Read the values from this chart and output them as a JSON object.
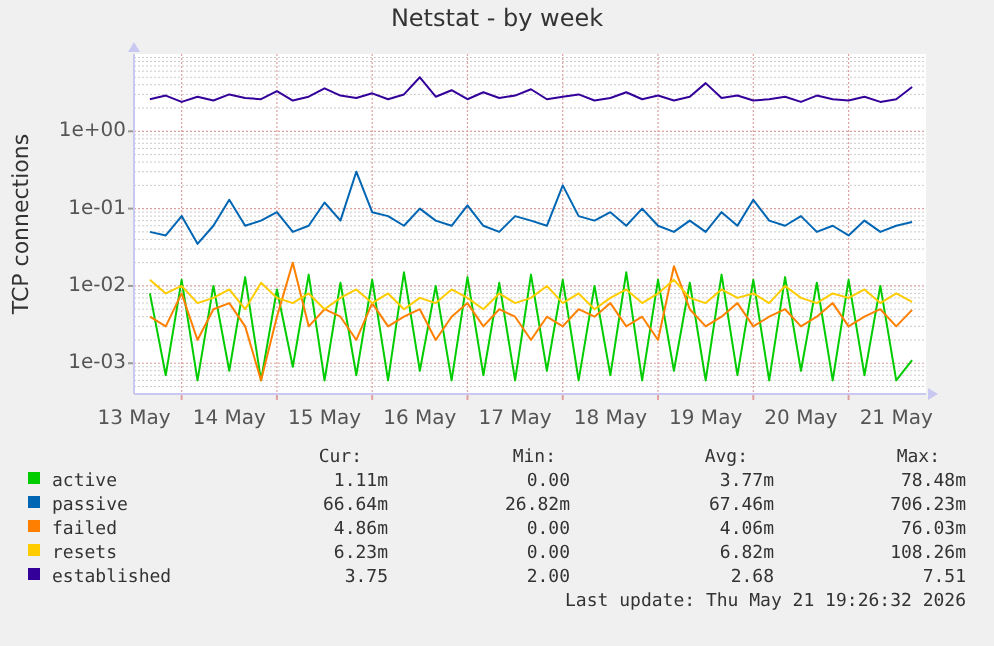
{
  "chart_data": {
    "type": "line",
    "title": "Netstat - by week",
    "ylabel": "TCP connections",
    "log": "y",
    "grid": true,
    "legend": "bottom",
    "line_style": "solid",
    "xlim": [
      "2026-05-13T12:00",
      "2026-05-21T19:30"
    ],
    "xticks": [
      {
        "value": "2026-05-13T12:00",
        "label": "13 May"
      },
      {
        "value": "2026-05-14T00:00",
        "label": null
      },
      {
        "value": "2026-05-14T12:00",
        "label": "14 May"
      },
      {
        "value": "2026-05-15T00:00",
        "label": null
      },
      {
        "value": "2026-05-15T12:00",
        "label": "15 May"
      },
      {
        "value": "2026-05-16T00:00",
        "label": null
      },
      {
        "value": "2026-05-16T12:00",
        "label": "16 May"
      },
      {
        "value": "2026-05-17T00:00",
        "label": null
      },
      {
        "value": "2026-05-17T12:00",
        "label": "17 May"
      },
      {
        "value": "2026-05-18T00:00",
        "label": null
      },
      {
        "value": "2026-05-18T12:00",
        "label": "18 May"
      },
      {
        "value": "2026-05-19T00:00",
        "label": null
      },
      {
        "value": "2026-05-19T12:00",
        "label": "19 May"
      },
      {
        "value": "2026-05-20T00:00",
        "label": null
      },
      {
        "value": "2026-05-20T12:00",
        "label": "20 May"
      },
      {
        "value": "2026-05-21T00:00",
        "label": null
      },
      {
        "value": "2026-05-21T12:00",
        "label": "21 May"
      }
    ],
    "ylim": [
      0.0004,
      10
    ],
    "yticks": [
      {
        "value": 0.001,
        "label": "1e-03"
      },
      {
        "value": 0.01,
        "label": "1e-02"
      },
      {
        "value": 0.1,
        "label": "1e-01"
      },
      {
        "value": 1,
        "label": "1e+00"
      }
    ],
    "x": [
      "2026-05-13T16:00",
      "2026-05-13T20:00",
      "2026-05-14T00:00",
      "2026-05-14T04:00",
      "2026-05-14T08:00",
      "2026-05-14T12:00",
      "2026-05-14T16:00",
      "2026-05-14T20:00",
      "2026-05-15T00:00",
      "2026-05-15T04:00",
      "2026-05-15T08:00",
      "2026-05-15T12:00",
      "2026-05-15T16:00",
      "2026-05-15T20:00",
      "2026-05-16T00:00",
      "2026-05-16T04:00",
      "2026-05-16T08:00",
      "2026-05-16T12:00",
      "2026-05-16T16:00",
      "2026-05-16T20:00",
      "2026-05-17T00:00",
      "2026-05-17T04:00",
      "2026-05-17T08:00",
      "2026-05-17T12:00",
      "2026-05-17T16:00",
      "2026-05-17T20:00",
      "2026-05-18T00:00",
      "2026-05-18T04:00",
      "2026-05-18T08:00",
      "2026-05-18T12:00",
      "2026-05-18T16:00",
      "2026-05-18T20:00",
      "2026-05-19T00:00",
      "2026-05-19T04:00",
      "2026-05-19T08:00",
      "2026-05-19T12:00",
      "2026-05-19T16:00",
      "2026-05-19T20:00",
      "2026-05-20T00:00",
      "2026-05-20T04:00",
      "2026-05-20T08:00",
      "2026-05-20T12:00",
      "2026-05-20T16:00",
      "2026-05-20T20:00",
      "2026-05-21T00:00",
      "2026-05-21T04:00",
      "2026-05-21T08:00",
      "2026-05-21T12:00",
      "2026-05-21T16:00"
    ],
    "series": [
      {
        "name": "active",
        "color": "#00cc00",
        "values": [
          0.008,
          0.0007,
          0.012,
          0.0006,
          0.01,
          0.0008,
          0.013,
          0.0006,
          0.009,
          0.0009,
          0.014,
          0.0006,
          0.011,
          0.0007,
          0.012,
          0.0006,
          0.015,
          0.0008,
          0.01,
          0.0006,
          0.013,
          0.0007,
          0.011,
          0.0006,
          0.014,
          0.0008,
          0.012,
          0.0006,
          0.01,
          0.0007,
          0.015,
          0.0006,
          0.012,
          0.0008,
          0.011,
          0.0006,
          0.014,
          0.0007,
          0.012,
          0.0006,
          0.013,
          0.0008,
          0.011,
          0.0006,
          0.012,
          0.0007,
          0.01,
          0.0006,
          0.0011
        ]
      },
      {
        "name": "passive",
        "color": "#0066b3",
        "values": [
          0.05,
          0.045,
          0.08,
          0.035,
          0.06,
          0.13,
          0.06,
          0.07,
          0.09,
          0.05,
          0.06,
          0.12,
          0.07,
          0.3,
          0.09,
          0.08,
          0.06,
          0.1,
          0.07,
          0.06,
          0.11,
          0.06,
          0.05,
          0.08,
          0.07,
          0.06,
          0.2,
          0.08,
          0.07,
          0.09,
          0.06,
          0.1,
          0.06,
          0.05,
          0.07,
          0.05,
          0.09,
          0.06,
          0.13,
          0.07,
          0.06,
          0.08,
          0.05,
          0.06,
          0.045,
          0.07,
          0.05,
          0.06,
          0.067
        ]
      },
      {
        "name": "failed",
        "color": "#ff8000",
        "values": [
          0.004,
          0.003,
          0.008,
          0.002,
          0.005,
          0.006,
          0.003,
          0.0006,
          0.004,
          0.02,
          0.003,
          0.005,
          0.004,
          0.002,
          0.006,
          0.003,
          0.004,
          0.005,
          0.002,
          0.004,
          0.006,
          0.003,
          0.005,
          0.004,
          0.002,
          0.004,
          0.003,
          0.005,
          0.004,
          0.006,
          0.003,
          0.004,
          0.002,
          0.018,
          0.005,
          0.003,
          0.004,
          0.006,
          0.003,
          0.004,
          0.005,
          0.003,
          0.004,
          0.006,
          0.003,
          0.004,
          0.005,
          0.003,
          0.0049
        ]
      },
      {
        "name": "resets",
        "color": "#ffcc00",
        "values": [
          0.012,
          0.008,
          0.01,
          0.006,
          0.007,
          0.009,
          0.005,
          0.011,
          0.007,
          0.006,
          0.008,
          0.005,
          0.007,
          0.009,
          0.006,
          0.008,
          0.005,
          0.007,
          0.006,
          0.009,
          0.007,
          0.005,
          0.008,
          0.006,
          0.007,
          0.01,
          0.006,
          0.008,
          0.005,
          0.007,
          0.009,
          0.006,
          0.008,
          0.012,
          0.007,
          0.006,
          0.009,
          0.007,
          0.008,
          0.006,
          0.01,
          0.007,
          0.006,
          0.008,
          0.007,
          0.009,
          0.006,
          0.008,
          0.0062
        ]
      },
      {
        "name": "established",
        "color": "#330099",
        "values": [
          2.6,
          2.9,
          2.4,
          2.8,
          2.5,
          3.0,
          2.7,
          2.6,
          3.3,
          2.5,
          2.8,
          3.6,
          2.9,
          2.7,
          3.1,
          2.6,
          3.0,
          5.0,
          2.8,
          3.4,
          2.6,
          3.2,
          2.7,
          2.9,
          3.5,
          2.6,
          2.8,
          3.0,
          2.5,
          2.7,
          3.2,
          2.6,
          2.9,
          2.5,
          2.8,
          4.2,
          2.7,
          2.9,
          2.5,
          2.6,
          2.8,
          2.4,
          2.9,
          2.6,
          2.5,
          2.8,
          2.4,
          2.6,
          3.75
        ]
      }
    ],
    "annotations": [
      "Cur:",
      "Min:",
      "Avg:",
      "Max:",
      "1.11m",
      "0.00",
      "3.77m",
      "78.48m",
      "66.64m",
      "26.82m",
      "67.46m",
      "706.23m",
      "4.86m",
      "0.00",
      "4.06m",
      "76.03m",
      "6.23m",
      "0.00",
      "6.82m",
      "108.26m",
      "3.75",
      "2.00",
      "2.68",
      "7.51",
      "Last update: Thu May 21 19:26:32 2026"
    ]
  }
}
